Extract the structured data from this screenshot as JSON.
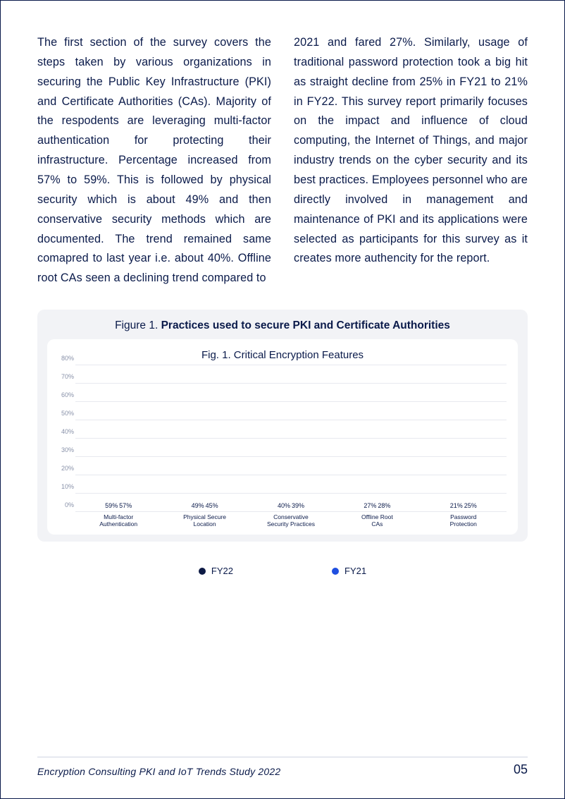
{
  "body": {
    "col1": "The first section of the survey covers the steps taken by various organizations in securing the Public Key Infrastructure (PKI) and Certificate Authorities (CAs). Majority of the respodents are leveraging multi-factor authentication for protecting their infrastructure. Percentage increased from 57% to 59%. This is followed by physical security which is about 49% and then conservative security methods which are documented. The trend remained same comapred to last year i.e. about 40%. Offline root CAs seen a declining trend compared to",
    "col2": "2021 and fared 27%. Similarly, usage of traditional password protection took a big hit as straight decline from 25% in FY21 to 21% in FY22.  This survey report primarily focuses on the impact and influence of cloud computing, the Internet of Things, and major industry trends on the cyber security and its best practices. Employees personnel who are directly involved in management and maintenance of PKI and its applications were selected as participants for this survey as it creates more authencity for the report."
  },
  "figure": {
    "caption_prefix": "Figure 1. ",
    "caption_bold": "Practices used to secure PKI and Certificate Authorities",
    "subtitle": "Fig. 1. Critical Encryption Features",
    "type": "bar",
    "ymax": 80,
    "ytick_step": 10,
    "yticks": [
      "0%",
      "10%",
      "20%",
      "30%",
      "40%",
      "50%",
      "60%",
      "70%",
      "80%"
    ],
    "series": [
      {
        "name": "FY22",
        "color": "#0d1a45"
      },
      {
        "name": "FY21",
        "color": "#1f4fe0"
      }
    ],
    "categories": [
      {
        "label_l1": "Multi-factor",
        "label_l2": "Authentication",
        "fy22": 59,
        "fy21": 57
      },
      {
        "label_l1": "Physical Secure",
        "label_l2": "Location",
        "fy22": 49,
        "fy21": 45
      },
      {
        "label_l1": "Conservative",
        "label_l2": "Security Practices",
        "fy22": 40,
        "fy21": 39
      },
      {
        "label_l1": "Offline Root",
        "label_l2": "CAs",
        "fy22": 27,
        "fy21": 28
      },
      {
        "label_l1": "Password",
        "label_l2": "Protection",
        "fy22": 21,
        "fy21": 25
      }
    ],
    "grid_color": "#e7e9ef",
    "card_bg": "#ffffff",
    "wrap_bg": "#f2f3f6"
  },
  "legend": {
    "items": [
      {
        "label": "FY22",
        "color": "#0d1a45"
      },
      {
        "label": "FY21",
        "color": "#1f4fe0"
      }
    ]
  },
  "footer": {
    "source": "Encryption Consulting PKI and IoT Trends Study 2022",
    "page": "05"
  }
}
